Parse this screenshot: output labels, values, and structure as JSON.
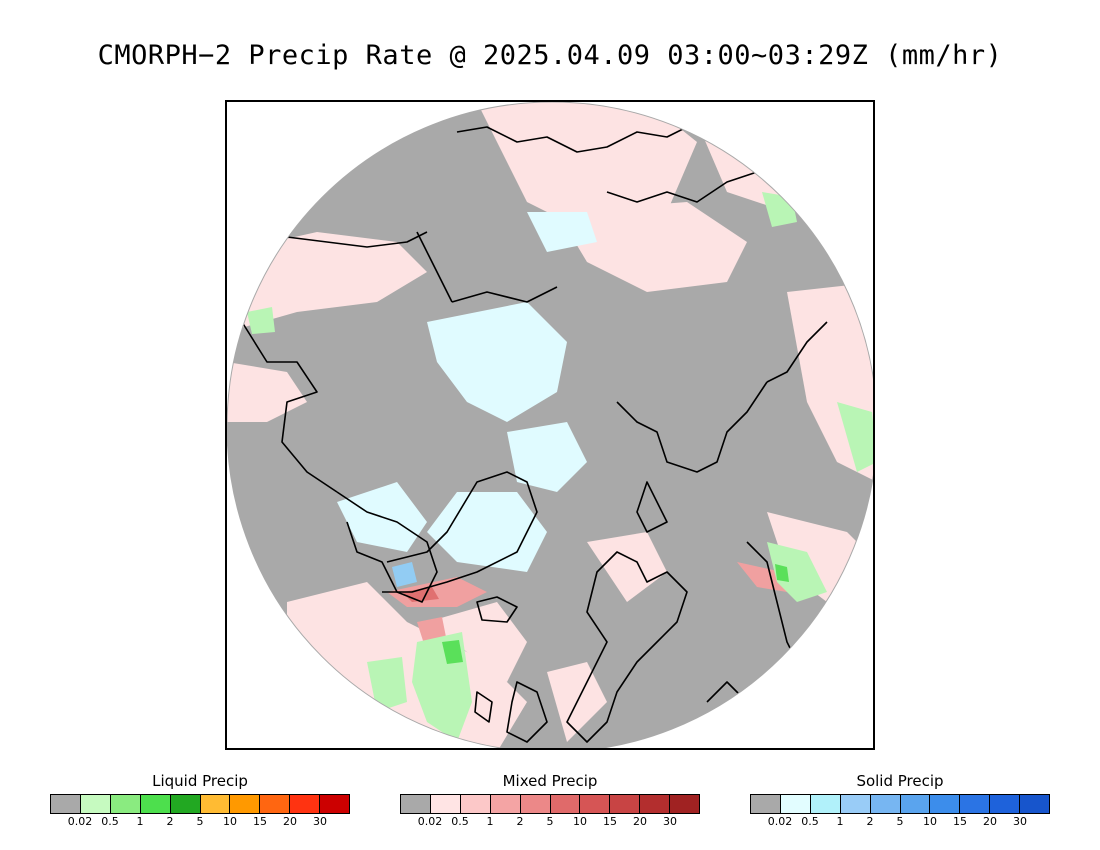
{
  "title": "CMORPH−2 Precip Rate @ 2025.04.09 03:00~03:29Z (mm/hr)",
  "map": {
    "projection": "north-polar-stereographic",
    "colors": {
      "no_precip": "#a9a9a9",
      "liquid_light": "#b9f5b5",
      "liquid_mid": "#5ae05a",
      "mixed_light": "#fde3e3",
      "mixed_mid": "#f4aaaa",
      "mixed_heavy": "#e07070",
      "solid_light": "#e0fbff",
      "solid_mid": "#92ccf3",
      "coast": "#000000"
    }
  },
  "legends": [
    {
      "title": "Liquid Precip",
      "colors": [
        "#a9a9a9",
        "#c6fac0",
        "#8aeb80",
        "#4ddf4d",
        "#22a822",
        "#ffbb33",
        "#ff9900",
        "#ff6611",
        "#ff3311",
        "#cc0000"
      ],
      "labels": [
        "0.02",
        "0.5",
        "1",
        "2",
        "5",
        "10",
        "15",
        "20",
        "30"
      ]
    },
    {
      "title": "Mixed Precip",
      "colors": [
        "#a9a9a9",
        "#ffe4e4",
        "#fcc8c8",
        "#f4a4a4",
        "#ec8888",
        "#e06a6a",
        "#d65555",
        "#c84444",
        "#b32e2e",
        "#a02222"
      ],
      "labels": [
        "0.02",
        "0.5",
        "1",
        "2",
        "5",
        "10",
        "15",
        "20",
        "30"
      ]
    },
    {
      "title": "Solid Precip",
      "colors": [
        "#a9a9a9",
        "#e2fdff",
        "#b1f1fa",
        "#99ccf7",
        "#77b6f2",
        "#5aa4ee",
        "#3c8deb",
        "#2b74e4",
        "#1e62db",
        "#1755cc"
      ],
      "labels": [
        "0.02",
        "0.5",
        "1",
        "2",
        "5",
        "10",
        "15",
        "20",
        "30"
      ]
    }
  ]
}
